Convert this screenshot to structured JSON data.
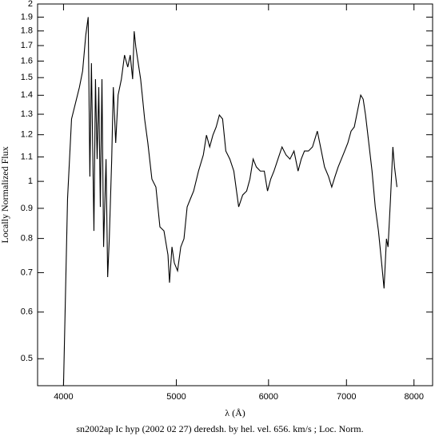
{
  "chart_data": {
    "type": "line",
    "caption": "sn2002ap Ic hyp (2002 02 27) deredsh. by hel. vel.   656. km/s ;  Loc. Norm.",
    "x_label": "λ (Å)",
    "y_label": "Locally Normalized Flux",
    "xlog": true,
    "ylog": true,
    "color": "#000000",
    "xlim": [
      3800,
      8300
    ],
    "ylim": [
      0.45,
      2
    ],
    "xticks": [
      4000,
      5000,
      6000,
      7000,
      8000
    ],
    "yticks": [
      0.5,
      0.6,
      0.7,
      0.8,
      0.9,
      1,
      1.1,
      1.2,
      1.3,
      1.4,
      1.5,
      1.6,
      1.7,
      1.8,
      1.9,
      2
    ],
    "series": [
      {
        "name": "sn2002ap",
        "color": "#000000",
        "x": [
          4000,
          4032,
          4064,
          4128,
          4154,
          4180,
          4200,
          4214,
          4227,
          4248,
          4261,
          4275,
          4289,
          4302,
          4316,
          4330,
          4351,
          4365,
          4379,
          4400,
          4414,
          4435,
          4456,
          4485,
          4513,
          4542,
          4564,
          4586,
          4600,
          4615,
          4637,
          4659,
          4674,
          4696,
          4726,
          4764,
          4802,
          4840,
          4879,
          4918,
          4933,
          4957,
          4980,
          5012,
          5044,
          5076,
          5108,
          5141,
          5174,
          5224,
          5274,
          5307,
          5341,
          5375,
          5410,
          5444,
          5479,
          5514,
          5558,
          5602,
          5656,
          5701,
          5746,
          5783,
          5820,
          5857,
          5903,
          5950,
          5988,
          6026,
          6065,
          6113,
          6162,
          6211,
          6260,
          6310,
          6361,
          6401,
          6442,
          6493,
          6545,
          6608,
          6650,
          6703,
          6756,
          6799,
          6843,
          6886,
          6930,
          6975,
          7019,
          7064,
          7109,
          7154,
          7200,
          7235,
          7269,
          7316,
          7363,
          7410,
          7457,
          7504,
          7540,
          7576,
          7600,
          7637,
          7673,
          7698,
          7735
        ],
        "values": [
          0.45,
          0.934,
          1.276,
          1.445,
          1.539,
          1.771,
          1.9,
          1.019,
          1.587,
          0.824,
          1.491,
          1.091,
          1.445,
          0.905,
          1.491,
          0.774,
          1.091,
          0.688,
          0.799,
          1.091,
          1.445,
          1.162,
          1.401,
          1.491,
          1.638,
          1.563,
          1.638,
          1.491,
          1.798,
          1.69,
          1.587,
          1.491,
          1.401,
          1.276,
          1.162,
          1.009,
          0.978,
          0.837,
          0.824,
          0.75,
          0.673,
          0.774,
          0.727,
          0.705,
          0.774,
          0.799,
          0.905,
          0.934,
          0.963,
          1.041,
          1.109,
          1.198,
          1.144,
          1.198,
          1.237,
          1.296,
          1.276,
          1.126,
          1.091,
          1.041,
          0.905,
          0.948,
          0.963,
          1.009,
          1.091,
          1.058,
          1.041,
          1.041,
          0.963,
          1.009,
          1.041,
          1.091,
          1.144,
          1.109,
          1.091,
          1.126,
          1.041,
          1.091,
          1.126,
          1.126,
          1.144,
          1.217,
          1.144,
          1.058,
          1.019,
          0.978,
          1.019,
          1.058,
          1.091,
          1.126,
          1.162,
          1.217,
          1.237,
          1.316,
          1.401,
          1.379,
          1.296,
          1.162,
          1.041,
          0.905,
          0.824,
          0.727,
          0.658,
          0.799,
          0.774,
          0.934,
          1.144,
          1.058,
          0.978
        ]
      }
    ]
  }
}
